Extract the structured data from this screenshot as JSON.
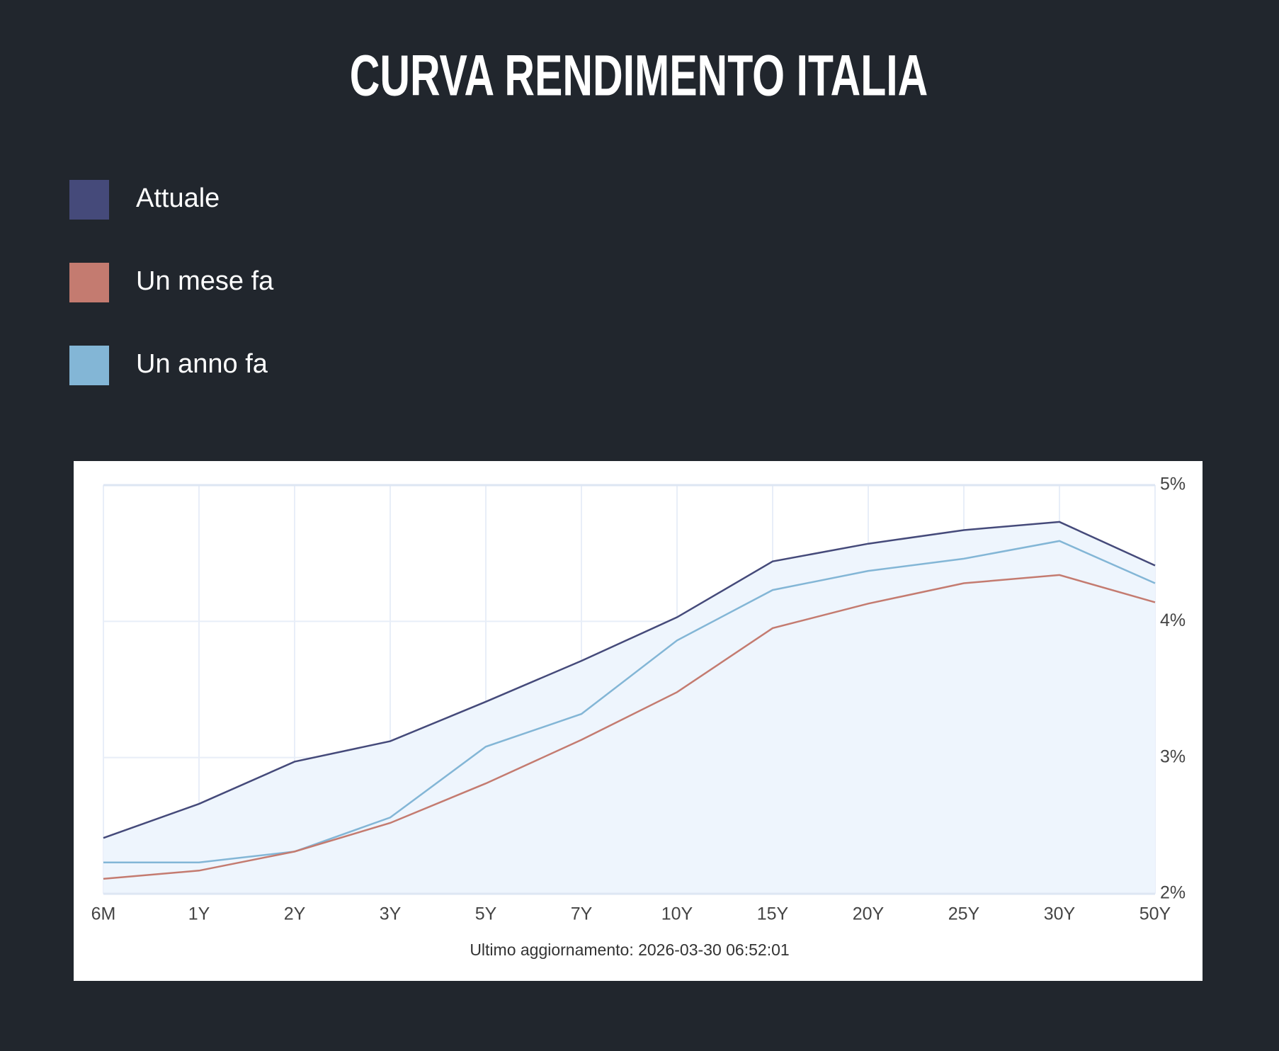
{
  "chart_data": {
    "type": "line",
    "title": "CURVA RENDIMENTO ITALIA",
    "annotation": "Ultimo aggiornamento: 2026-03-30 06:52:01",
    "categories": [
      "6M",
      "1Y",
      "2Y",
      "3Y",
      "5Y",
      "7Y",
      "10Y",
      "15Y",
      "20Y",
      "25Y",
      "30Y",
      "50Y"
    ],
    "series": [
      {
        "name": "Attuale",
        "color": "#454a7a",
        "values": [
          2.41,
          2.66,
          2.97,
          3.12,
          3.41,
          3.71,
          4.03,
          4.44,
          4.57,
          4.67,
          4.73,
          4.41
        ]
      },
      {
        "name": "Un mese fa",
        "color": "#c47b70",
        "values": [
          2.11,
          2.17,
          2.31,
          2.52,
          2.81,
          3.13,
          3.48,
          3.95,
          4.13,
          4.28,
          4.34,
          4.14
        ]
      },
      {
        "name": "Un anno fa",
        "color": "#83b6d6",
        "values": [
          2.23,
          2.23,
          2.31,
          2.56,
          3.08,
          3.32,
          3.86,
          4.23,
          4.37,
          4.46,
          4.59,
          4.28
        ]
      }
    ],
    "ylim": [
      2,
      5
    ],
    "yticks": [
      {
        "value": 2,
        "label": "2%"
      },
      {
        "value": 3,
        "label": "3%"
      },
      {
        "value": 4,
        "label": "4%"
      },
      {
        "value": 5,
        "label": "5%"
      }
    ],
    "grid": true
  }
}
